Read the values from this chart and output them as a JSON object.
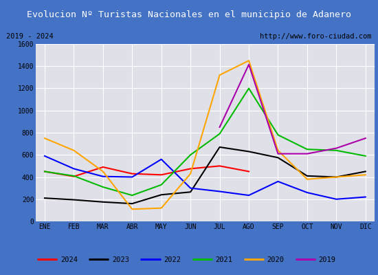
{
  "title": "Evolucion Nº Turistas Nacionales en el municipio de Adanero",
  "subtitle_left": "2019 - 2024",
  "subtitle_right": "http://www.foro-ciudad.com",
  "months": [
    "ENE",
    "FEB",
    "MAR",
    "ABR",
    "MAY",
    "JUN",
    "JUL",
    "AGO",
    "SEP",
    "OCT",
    "NOV",
    "DIC"
  ],
  "series": {
    "2024": [
      450,
      405,
      490,
      430,
      420,
      475,
      500,
      450,
      null,
      null,
      null,
      null
    ],
    "2023": [
      210,
      195,
      175,
      160,
      240,
      265,
      670,
      630,
      575,
      410,
      400,
      450
    ],
    "2022": [
      590,
      475,
      405,
      400,
      560,
      300,
      270,
      235,
      360,
      260,
      200,
      220
    ],
    "2021": [
      450,
      410,
      310,
      235,
      330,
      600,
      790,
      1200,
      780,
      650,
      640,
      590
    ],
    "2020": [
      750,
      640,
      450,
      110,
      120,
      430,
      1320,
      1450,
      640,
      380,
      400,
      420
    ],
    "2019": [
      null,
      null,
      null,
      null,
      null,
      null,
      850,
      1415,
      610,
      610,
      660,
      750
    ]
  },
  "colors": {
    "2024": "#ff0000",
    "2023": "#000000",
    "2022": "#0000ff",
    "2021": "#00bb00",
    "2020": "#ffa500",
    "2019": "#aa00aa"
  },
  "ylim": [
    0,
    1600
  ],
  "yticks": [
    0,
    200,
    400,
    600,
    800,
    1000,
    1200,
    1400,
    1600
  ],
  "title_bg_color": "#4472c4",
  "title_text_color": "#ffffff",
  "plot_bg_color": "#e0e0e8",
  "grid_color": "#ffffff",
  "border_color": "#4472c4",
  "subtitle_bg": "#ffffff",
  "legend_bg": "#ffffff"
}
